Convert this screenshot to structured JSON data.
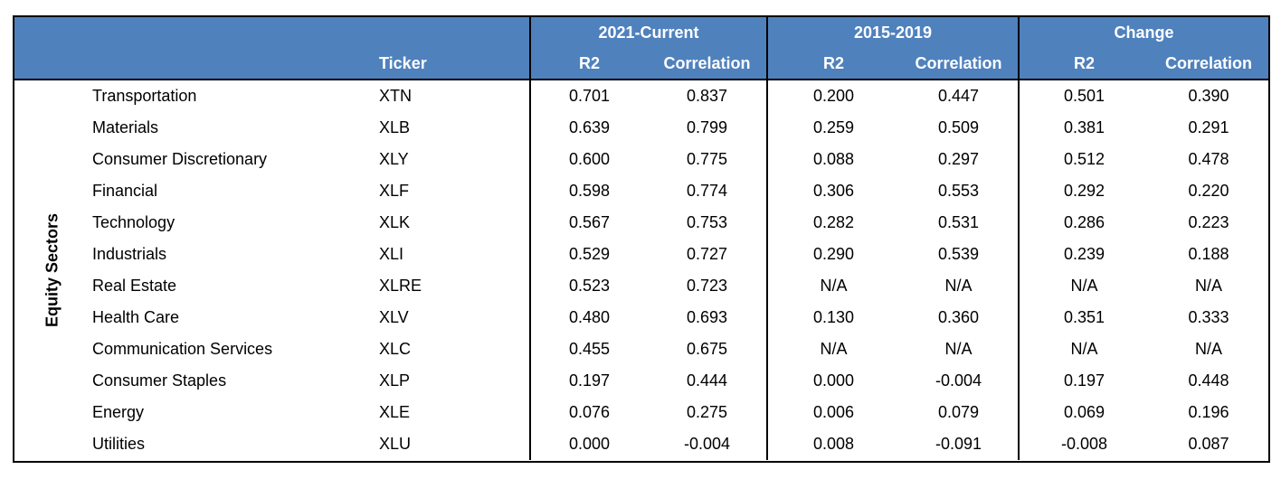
{
  "table": {
    "side_label": "Equity Sectors",
    "ticker_header": "Ticker",
    "groups": [
      "2021-Current",
      "2015-2019",
      "Change"
    ],
    "subheaders": [
      "R2",
      "Correlation"
    ],
    "rows": [
      {
        "sector": "Transportation",
        "ticker": "XTN",
        "values": [
          "0.701",
          "0.837",
          "0.200",
          "0.447",
          "0.501",
          "0.390"
        ]
      },
      {
        "sector": "Materials",
        "ticker": "XLB",
        "values": [
          "0.639",
          "0.799",
          "0.259",
          "0.509",
          "0.381",
          "0.291"
        ]
      },
      {
        "sector": "Consumer Discretionary",
        "ticker": "XLY",
        "values": [
          "0.600",
          "0.775",
          "0.088",
          "0.297",
          "0.512",
          "0.478"
        ]
      },
      {
        "sector": "Financial",
        "ticker": "XLF",
        "values": [
          "0.598",
          "0.774",
          "0.306",
          "0.553",
          "0.292",
          "0.220"
        ]
      },
      {
        "sector": "Technology",
        "ticker": "XLK",
        "values": [
          "0.567",
          "0.753",
          "0.282",
          "0.531",
          "0.286",
          "0.223"
        ]
      },
      {
        "sector": "Industrials",
        "ticker": "XLI",
        "values": [
          "0.529",
          "0.727",
          "0.290",
          "0.539",
          "0.239",
          "0.188"
        ]
      },
      {
        "sector": "Real Estate",
        "ticker": "XLRE",
        "values": [
          "0.523",
          "0.723",
          "N/A",
          "N/A",
          "N/A",
          "N/A"
        ]
      },
      {
        "sector": "Health Care",
        "ticker": "XLV",
        "values": [
          "0.480",
          "0.693",
          "0.130",
          "0.360",
          "0.351",
          "0.333"
        ]
      },
      {
        "sector": "Communication Services",
        "ticker": "XLC",
        "values": [
          "0.455",
          "0.675",
          "N/A",
          "N/A",
          "N/A",
          "N/A"
        ]
      },
      {
        "sector": "Consumer Staples",
        "ticker": "XLP",
        "values": [
          "0.197",
          "0.444",
          "0.000",
          "-0.004",
          "0.197",
          "0.448"
        ]
      },
      {
        "sector": "Energy",
        "ticker": "XLE",
        "values": [
          "0.076",
          "0.275",
          "0.006",
          "0.079",
          "0.069",
          "0.196"
        ]
      },
      {
        "sector": "Utilities",
        "ticker": "XLU",
        "values": [
          "0.000",
          "-0.004",
          "0.008",
          "-0.091",
          "-0.008",
          "0.087"
        ]
      }
    ]
  },
  "colors": {
    "header_background": "#4f81bd",
    "header_text": "#ffffff",
    "border": "#000000"
  }
}
